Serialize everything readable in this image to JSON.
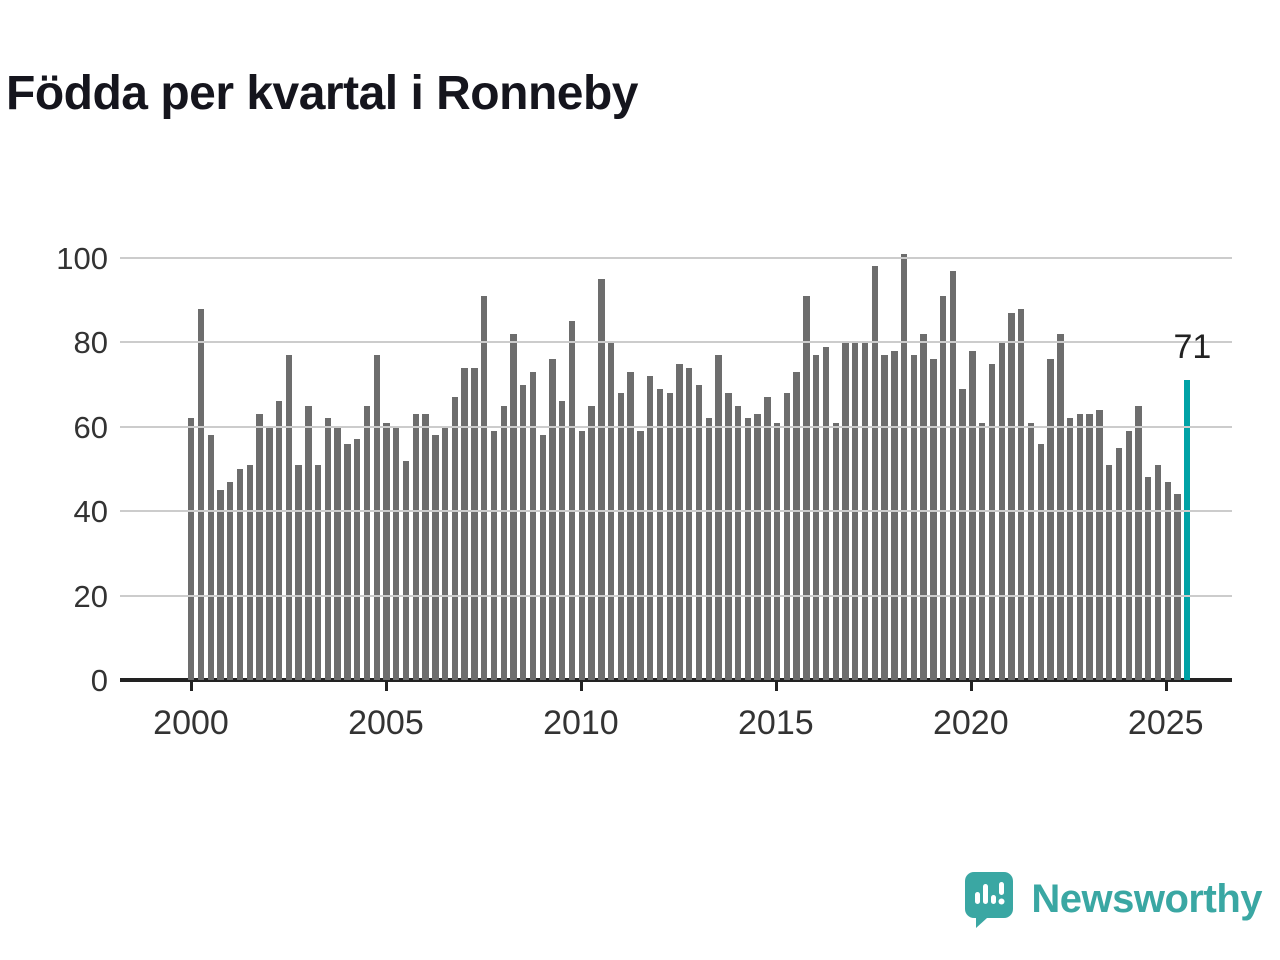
{
  "title": "Födda per kvartal i Ronneby",
  "annotation": {
    "label": "71"
  },
  "branding": {
    "name": "Newsworthy",
    "icon": "newsworthy-bar-chart-badge-icon",
    "color": "#3aa7a3"
  },
  "colors": {
    "bar": "#6d6d6d",
    "highlight": "#00a2a6",
    "grid": "#cccccc",
    "axis": "#222222",
    "title_text": "#15151d",
    "tick_text": "#333333"
  },
  "chart_data": {
    "type": "bar",
    "title": "Födda per kvartal i Ronneby",
    "xlabel": "",
    "ylabel": "",
    "x_start": "2000 Q1",
    "x_freq": "quarterly",
    "x_tick_years": [
      2000,
      2005,
      2010,
      2015,
      2020,
      2025
    ],
    "y_ticks": [
      0,
      20,
      40,
      60,
      80,
      100
    ],
    "ylim": [
      0,
      100
    ],
    "grid": "horizontal",
    "legend": "none",
    "series": [
      {
        "name": "Födda per kvartal",
        "values": [
          62,
          88,
          58,
          45,
          47,
          50,
          51,
          63,
          60,
          66,
          77,
          51,
          65,
          51,
          62,
          60,
          56,
          57,
          65,
          77,
          61,
          60,
          52,
          63,
          63,
          58,
          60,
          67,
          74,
          74,
          91,
          59,
          65,
          82,
          70,
          73,
          58,
          76,
          66,
          85,
          59,
          65,
          95,
          80,
          68,
          73,
          59,
          72,
          69,
          68,
          75,
          74,
          70,
          62,
          77,
          68,
          65,
          62,
          63,
          67,
          61,
          68,
          73,
          91,
          77,
          79,
          61,
          80,
          80,
          80,
          98,
          77,
          78,
          101,
          77,
          82,
          76,
          91,
          97,
          69,
          78,
          61,
          75,
          80,
          87,
          88,
          61,
          56,
          76,
          82,
          62,
          63,
          63,
          64,
          51,
          55,
          59,
          65,
          48,
          51,
          47,
          44,
          71
        ]
      }
    ],
    "highlight": {
      "index_from_end": 1,
      "quarter": "2025 Q3",
      "value": 71,
      "label": "71"
    }
  }
}
